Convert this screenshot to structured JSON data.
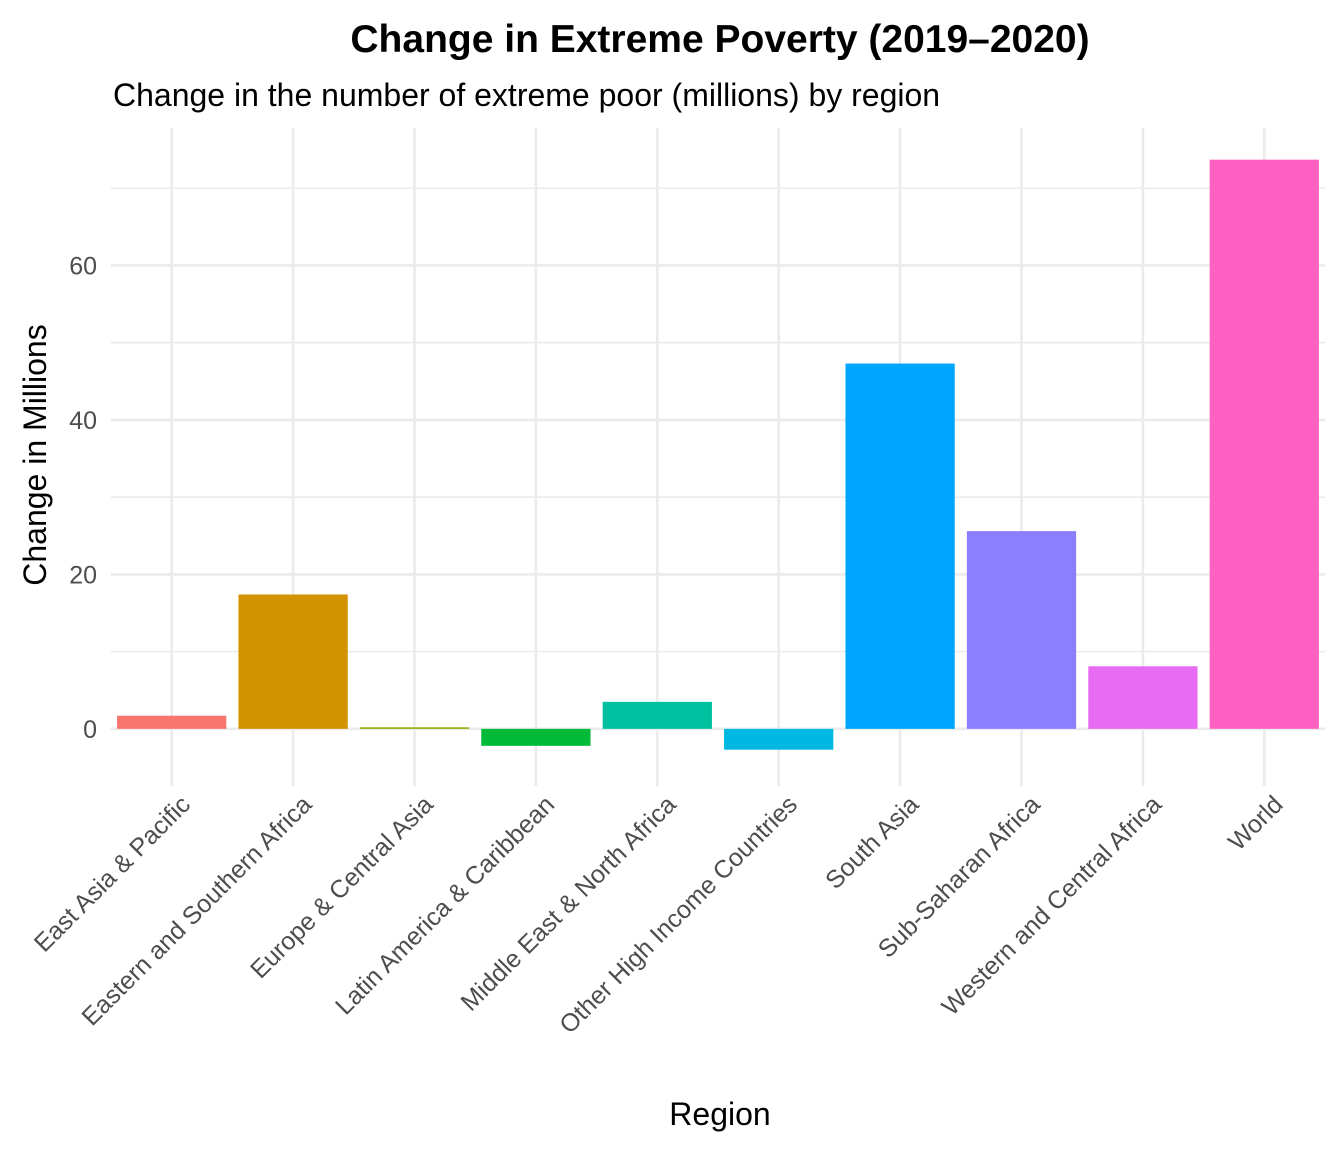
{
  "chart_data": {
    "type": "bar",
    "title": "Change in Extreme Poverty (2019–2020)",
    "subtitle": "Change in the number of extreme poor (millions) by region",
    "xlabel": "Region",
    "ylabel": "Change in Millions",
    "categories": [
      "East Asia & Pacific",
      "Eastern and Southern Africa",
      "Europe & Central Asia",
      "Latin America & Caribbean",
      "Middle East & North Africa",
      "Other High Income Countries",
      "South Asia",
      "Sub-Saharan Africa",
      "Western and Central Africa",
      "World"
    ],
    "values": [
      1.7,
      17.4,
      0.2,
      -2.2,
      3.5,
      -2.7,
      47.3,
      25.6,
      8.1,
      73.7
    ],
    "colors": [
      "#F8766D",
      "#D39200",
      "#93AA00",
      "#00BA38",
      "#00C19F",
      "#00B9E3",
      "#00A5FF",
      "#8B7EFF",
      "#E76BF3",
      "#FF61C3"
    ],
    "ylim": [
      -7.4,
      77.8
    ],
    "y_ticks": [
      0,
      20,
      40,
      60
    ],
    "grid": true,
    "legend": "none"
  }
}
